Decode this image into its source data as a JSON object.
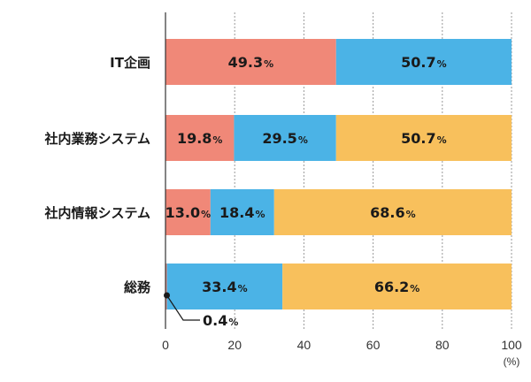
{
  "chart_data": {
    "type": "bar",
    "orientation": "horizontal",
    "stacked": true,
    "categories": [
      "IT企画",
      "社内業務システム",
      "社内情報システム",
      "総務"
    ],
    "series": [
      {
        "values": [
          49.3,
          19.8,
          13.0,
          0.4
        ],
        "color": "#f08878"
      },
      {
        "values": [
          50.7,
          29.5,
          18.4,
          33.4
        ],
        "color": "#4bb3e6"
      },
      {
        "values": [
          0,
          50.7,
          68.6,
          66.2
        ],
        "color": "#f8c05c"
      }
    ],
    "value_labels": [
      [
        "49.3",
        "50.7",
        ""
      ],
      [
        "19.8",
        "29.5",
        "50.7"
      ],
      [
        "13.0",
        "18.4",
        "68.6"
      ],
      [
        "",
        "33.4",
        "66.2"
      ]
    ],
    "value_unit": "%",
    "callout": {
      "category_index": 3,
      "series_index": 0,
      "label": "0.4"
    },
    "xlim": [
      0,
      100
    ],
    "xticks": [
      "0",
      "20",
      "40",
      "60",
      "80",
      "100"
    ],
    "x_unit_label": "(%)",
    "grid": {
      "vertical": true,
      "style": "dotted"
    },
    "legend": "none"
  }
}
